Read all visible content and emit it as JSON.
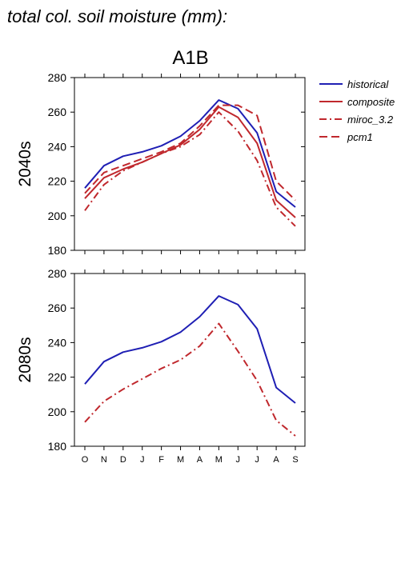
{
  "figure": {
    "title": "total col. soil moisture (mm):",
    "scenario": "A1B"
  },
  "colors": {
    "historical": "#1f1fb4",
    "composite": "#c0282d",
    "miroc_3.2": "#c0282d",
    "pcm1": "#c0282d",
    "axis": "#000000"
  },
  "legend": {
    "items": [
      {
        "label": "historical",
        "color": "#1f1fb4",
        "style": "solid"
      },
      {
        "label": "composite",
        "color": "#c0282d",
        "style": "solid"
      },
      {
        "label": "miroc_3.2",
        "color": "#c0282d",
        "style": "dashdot"
      },
      {
        "label": "pcm1",
        "color": "#c0282d",
        "style": "dashed"
      }
    ]
  },
  "chart_data": [
    {
      "type": "line",
      "title": "A1B",
      "ylabel": "2040s",
      "xlabel": "",
      "categories": [
        "O",
        "N",
        "D",
        "J",
        "F",
        "M",
        "A",
        "M",
        "J",
        "J",
        "A",
        "S"
      ],
      "ylim": [
        180,
        280
      ],
      "yticks": [
        180,
        200,
        220,
        240,
        260,
        280
      ],
      "grid": false,
      "legend_position": "right",
      "series": [
        {
          "name": "historical",
          "style": "solid",
          "color": "#1f1fb4",
          "values": [
            216,
            229,
            234.5,
            237,
            240.5,
            246,
            255,
            267,
            262,
            248,
            214,
            205
          ]
        },
        {
          "name": "composite",
          "style": "solid",
          "color": "#c0282d",
          "values": [
            210,
            222,
            227,
            231,
            236,
            241,
            250,
            263,
            257,
            242,
            209,
            199
          ]
        },
        {
          "name": "miroc_3.2",
          "style": "dashdot",
          "color": "#c0282d",
          "values": [
            203,
            218,
            226,
            231,
            236,
            240,
            247,
            260,
            249,
            232,
            205,
            194
          ]
        },
        {
          "name": "pcm1",
          "style": "dashed",
          "color": "#c0282d",
          "values": [
            213,
            225,
            229,
            233,
            237,
            242,
            252,
            264,
            264,
            258,
            220,
            209
          ]
        }
      ]
    },
    {
      "type": "line",
      "title": "",
      "ylabel": "2080s",
      "xlabel": "",
      "categories": [
        "O",
        "N",
        "D",
        "J",
        "F",
        "M",
        "A",
        "M",
        "J",
        "J",
        "A",
        "S"
      ],
      "ylim": [
        180,
        280
      ],
      "yticks": [
        180,
        200,
        220,
        240,
        260,
        280
      ],
      "grid": false,
      "series": [
        {
          "name": "historical",
          "style": "solid",
          "color": "#1f1fb4",
          "values": [
            216,
            229,
            234.5,
            237,
            240.5,
            246,
            255,
            267,
            262,
            248,
            214,
            205
          ]
        },
        {
          "name": "miroc_3.2",
          "style": "dashdot",
          "color": "#c0282d",
          "values": [
            194,
            206,
            213,
            219,
            225,
            230,
            238,
            251,
            235,
            218,
            195,
            186
          ]
        }
      ]
    }
  ]
}
